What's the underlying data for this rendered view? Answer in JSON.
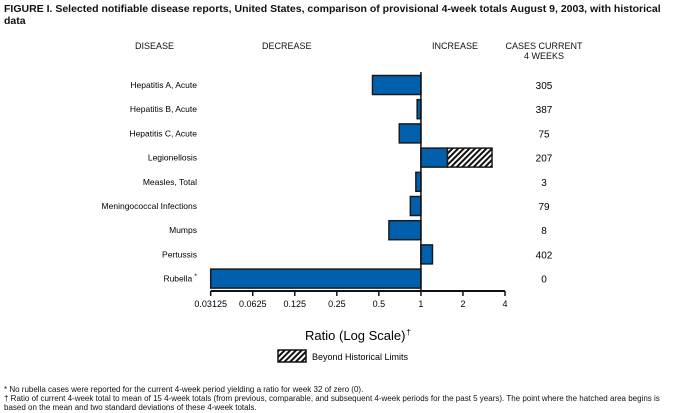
{
  "title": "FIGURE I. Selected notifiable disease reports, United States, comparison of provisional 4-week totals August 9, 2003, with historical data",
  "headers": {
    "disease": "DISEASE",
    "decrease": "DECREASE",
    "increase": "INCREASE",
    "cases": "CASES CURRENT\n4 WEEKS"
  },
  "chart_data": {
    "type": "bar",
    "orientation": "horizontal",
    "xscale": "log2",
    "xlabel": "Ratio (Log Scale)",
    "xlabel_mark": "†",
    "xlim": [
      0.03125,
      4
    ],
    "xticks": [
      "0.03125",
      "0.0625",
      "0.125",
      "0.25",
      "0.5",
      "1",
      "2",
      "4"
    ],
    "xtick_values": [
      0.03125,
      0.0625,
      0.125,
      0.25,
      0.5,
      1,
      2,
      4
    ],
    "baseline": 1,
    "categories": [
      "Hepatitis A, Acute",
      "Hepatitis B, Acute",
      "Hepatitis C, Acute",
      "Legionellosis",
      "Measles, Total",
      "Meningococcal Infections",
      "Mumps",
      "Pertussis",
      "Rubella"
    ],
    "category_marks": [
      "",
      "",
      "",
      "",
      "",
      "",
      "",
      "",
      "*"
    ],
    "values": [
      0.45,
      0.94,
      0.7,
      3.23,
      0.92,
      0.84,
      0.59,
      1.21,
      0.03125
    ],
    "historical_limit": [
      null,
      null,
      null,
      1.55,
      null,
      null,
      null,
      null,
      null
    ],
    "cases_current_4_weeks": [
      "305",
      "387",
      "75",
      "207",
      "3",
      "79",
      "8",
      "402",
      "0"
    ],
    "legend": [
      {
        "label": "Beyond Historical Limits",
        "style": "hatched"
      }
    ],
    "colors": {
      "bar": "#0060ad",
      "outline": "#1a1a1a"
    }
  },
  "footnotes": [
    "* No rubella cases were reported for the current 4-week period yielding a ratio for week 32 of zero (0).",
    "† Ratio of current 4-week total to mean of 15 4-week totals (from previous, comparable, and subsequent 4-week periods for the past 5 years). The point where the hatched area begins is based on the mean and two standard deviations of these 4-week totals."
  ]
}
